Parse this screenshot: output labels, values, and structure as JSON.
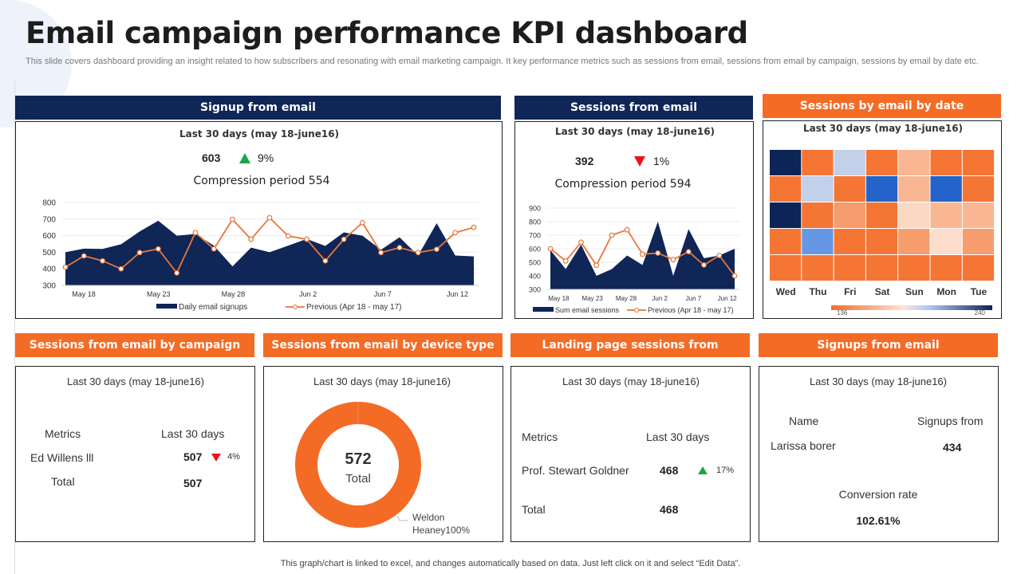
{
  "title": "Email campaign performance KPI dashboard",
  "subtitle": "This slide covers dashboard providing an insight related to how subscribers and resonating with email marketing campaign. It key performance metrics such as sessions from email, sessions from email by campaign, sessions by email by date etc.",
  "footer": "This graph/chart is linked to excel,  and changes automatically based on data. Just left click on it and select “Edit Data”.",
  "colors": {
    "navy": "#0f2656",
    "orange": "#f46b26",
    "up": "#1aa64a",
    "down": "#e8141b",
    "line": "#e8763a"
  },
  "signup": {
    "header": "Signup from email",
    "period": "Last 30 days (may 18-june16)",
    "value": "603",
    "trend": "up",
    "change": "9%",
    "comparison": "Compression period 554"
  },
  "sessions": {
    "header": "Sessions from email",
    "period": "Last 30 days (may 18-june16)",
    "value": "392",
    "trend": "down",
    "change": "1%",
    "comparison": "Compression period 594"
  },
  "bydate": {
    "header": "Sessions by email by date",
    "period": "Last 30 days (may 18-june16)"
  },
  "campaign": {
    "header": "Sessions from email by campaign",
    "period": "Last 30 days (may 18-june16)",
    "col1": "Metrics",
    "col2": "Last 30 days",
    "row_name": "Ed Willens lll",
    "row_value": "507",
    "row_trend": "down",
    "row_change": "4%",
    "total_label": "Total",
    "total_value": "507"
  },
  "device": {
    "header": "Sessions from email by device type",
    "period": "Last 30 days (may 18-june16)"
  },
  "landing": {
    "header": "Landing page sessions from",
    "period": "Last 30 days (may 18-june16)",
    "col1": "Metrics",
    "col2": "Last 30 days",
    "row_name": "Prof. Stewart Goldner",
    "row_value": "468",
    "row_trend": "up",
    "row_change": "17%",
    "total_label": "Total",
    "total_value": "468"
  },
  "signups2": {
    "header": "Signups from email",
    "period": "Last 30 days (may 18-june16)",
    "col1": "Name",
    "col2": "Signups from",
    "row_name": "Larissa borer",
    "row_value": "434",
    "conv_label": "Conversion rate",
    "conv_value": "102.61%"
  },
  "chart_data": [
    {
      "type": "area",
      "ylim": [
        300,
        800
      ],
      "yticks": [
        300,
        400,
        500,
        600,
        700,
        800
      ],
      "xticks": [
        "May 18",
        "May 23",
        "May 28",
        "Jun 2",
        "Jun 7",
        "Jun 12"
      ],
      "grid": true,
      "legend": "bottom",
      "series": [
        {
          "name": "Daily email signups",
          "type": "area",
          "values": [
            500,
            522,
            520,
            548,
            625,
            690,
            600,
            610,
            540,
            415,
            528,
            500,
            540,
            580,
            538,
            620,
            600,
            515,
            590,
            480,
            675,
            480,
            475
          ]
        },
        {
          "name": "Previous (Apr 18 - may 17)",
          "type": "line",
          "values": [
            410,
            478,
            448,
            400,
            498,
            520,
            375,
            618,
            520,
            698,
            578,
            708,
            598,
            578,
            448,
            578,
            678,
            498,
            528,
            498,
            518,
            618,
            650
          ]
        }
      ]
    },
    {
      "type": "area",
      "ylim": [
        300,
        900
      ],
      "yticks": [
        300,
        400,
        500,
        600,
        700,
        800,
        900
      ],
      "xticks": [
        "May 18",
        "May 23",
        "May 28",
        "Jun 2",
        "Jun 7",
        "Jun 12"
      ],
      "grid": true,
      "legend": "bottom",
      "series": [
        {
          "name": "Sum email sessions",
          "type": "area",
          "values": [
            590,
            450,
            630,
            400,
            450,
            550,
            480,
            800,
            400,
            745,
            530,
            550,
            600
          ]
        },
        {
          "name": "Previous (Apr 18 - may 17)",
          "type": "line",
          "values": [
            600,
            510,
            648,
            478,
            700,
            740,
            560,
            568,
            520,
            578,
            480,
            550,
            400
          ]
        }
      ]
    },
    {
      "type": "heatmap",
      "columns": [
        "Wed",
        "Thu",
        "Fri",
        "Sat",
        "Sun",
        "Mon",
        "Tue"
      ],
      "range": [
        136,
        240
      ],
      "range_labels": [
        "136",
        "240"
      ],
      "values": [
        [
          240,
          140,
          195,
          140,
          165,
          140,
          140
        ],
        [
          140,
          195,
          140,
          222,
          165,
          222,
          140
        ],
        [
          240,
          140,
          155,
          140,
          178,
          165,
          165
        ],
        [
          140,
          210,
          140,
          140,
          155,
          180,
          155
        ],
        [
          140,
          140,
          140,
          140,
          140,
          140,
          140
        ]
      ]
    },
    {
      "type": "pie",
      "donut": true,
      "center_value": "572",
      "center_label": "Total",
      "slices": [
        {
          "label": "Weldon Heaney",
          "value": 100,
          "display": "Weldon Heaney100%"
        }
      ]
    }
  ]
}
